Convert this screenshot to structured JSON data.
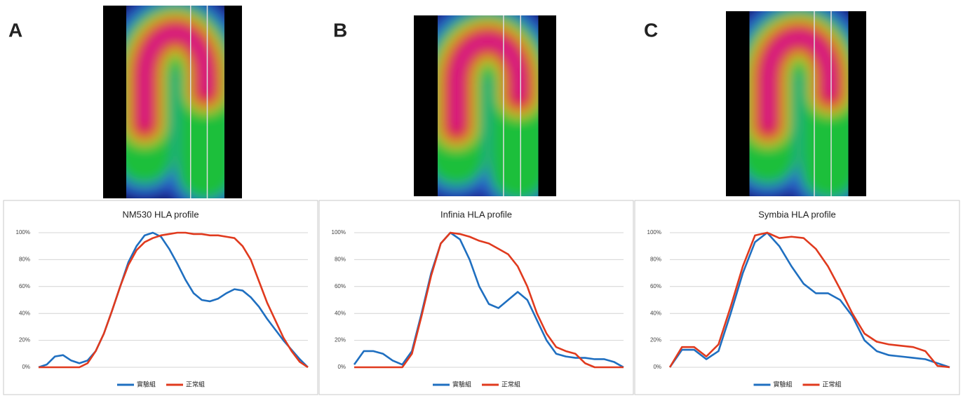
{
  "panel_labels": [
    "A",
    "B",
    "C"
  ],
  "chart_data": [
    {
      "type": "line",
      "title": "NM530 HLA profile",
      "categories": [
        null,
        null,
        null,
        null,
        null,
        null,
        null,
        null,
        null,
        null,
        null,
        null,
        null,
        null,
        null,
        null,
        null,
        null,
        null,
        null,
        null,
        null,
        null,
        null,
        null,
        null,
        null,
        null,
        null,
        null,
        null,
        null,
        null,
        null
      ],
      "series": [
        {
          "name": "實驗組",
          "color": "#1f6fc0",
          "values": [
            0,
            2,
            8,
            9,
            5,
            3,
            5,
            12,
            25,
            42,
            60,
            78,
            90,
            98,
            100,
            97,
            88,
            77,
            65,
            55,
            50,
            49,
            51,
            55,
            58,
            57,
            52,
            45,
            36,
            28,
            20,
            13,
            6,
            0
          ]
        },
        {
          "name": "正常組",
          "color": "#e03a1e",
          "values": [
            0,
            0,
            0,
            0,
            0,
            0,
            3,
            12,
            25,
            42,
            60,
            76,
            87,
            93,
            96,
            98,
            99,
            100,
            100,
            99,
            99,
            98,
            98,
            97,
            96,
            90,
            80,
            64,
            48,
            35,
            22,
            12,
            4,
            0
          ]
        }
      ],
      "ylim": [
        0,
        100
      ],
      "yticks": [
        {
          "value": 0,
          "label": "0%"
        },
        {
          "value": 20,
          "label": "20%"
        },
        {
          "value": 40,
          "label": "40%"
        },
        {
          "value": 60,
          "label": "60%"
        },
        {
          "value": 80,
          "label": "80%"
        },
        {
          "value": 100,
          "label": "100%"
        }
      ],
      "grid": true,
      "legend": "bottom"
    },
    {
      "type": "line",
      "title": "Infinia HLA profile",
      "categories": [
        null,
        null,
        null,
        null,
        null,
        null,
        null,
        null,
        null,
        null,
        null,
        null,
        null,
        null,
        null,
        null,
        null,
        null,
        null,
        null,
        null,
        null,
        null,
        null,
        null,
        null,
        null,
        null,
        null
      ],
      "series": [
        {
          "name": "實驗組",
          "color": "#1f6fc0",
          "values": [
            2,
            12,
            12,
            10,
            5,
            2,
            12,
            40,
            70,
            92,
            100,
            95,
            80,
            60,
            47,
            44,
            50,
            56,
            50,
            35,
            20,
            10,
            8,
            7,
            7,
            6,
            6,
            4,
            0
          ]
        },
        {
          "name": "正常組",
          "color": "#e03a1e",
          "values": [
            0,
            0,
            0,
            0,
            0,
            0,
            10,
            38,
            68,
            92,
            100,
            99,
            97,
            94,
            92,
            88,
            84,
            75,
            60,
            40,
            25,
            15,
            12,
            10,
            3,
            0,
            0,
            0,
            0
          ]
        }
      ],
      "ylim": [
        0,
        100
      ],
      "yticks": [
        {
          "value": 0,
          "label": "0%"
        },
        {
          "value": 20,
          "label": "20%"
        },
        {
          "value": 40,
          "label": "40%"
        },
        {
          "value": 60,
          "label": "60%"
        },
        {
          "value": 80,
          "label": "80%"
        },
        {
          "value": 100,
          "label": "100%"
        }
      ],
      "grid": true,
      "legend": "bottom"
    },
    {
      "type": "line",
      "title": "Symbia HLA profile",
      "categories": [
        null,
        null,
        null,
        null,
        null,
        null,
        null,
        null,
        null,
        null,
        null,
        null,
        null,
        null,
        null,
        null,
        null,
        null,
        null,
        null,
        null,
        null,
        null,
        null
      ],
      "series": [
        {
          "name": "實驗組",
          "color": "#1f6fc0",
          "values": [
            0,
            13,
            13,
            6,
            12,
            40,
            70,
            93,
            100,
            90,
            75,
            62,
            55,
            55,
            50,
            38,
            20,
            12,
            9,
            8,
            7,
            6,
            3,
            0
          ]
        },
        {
          "name": "正常組",
          "color": "#e03a1e",
          "values": [
            0,
            15,
            15,
            8,
            17,
            45,
            75,
            98,
            100,
            96,
            97,
            96,
            88,
            75,
            58,
            40,
            25,
            19,
            17,
            16,
            15,
            12,
            1,
            0
          ]
        }
      ],
      "ylim": [
        0,
        100
      ],
      "yticks": [
        {
          "value": 0,
          "label": "0%"
        },
        {
          "value": 20,
          "label": "20%"
        },
        {
          "value": 40,
          "label": "40%"
        },
        {
          "value": 60,
          "label": "60%"
        },
        {
          "value": 80,
          "label": "80%"
        },
        {
          "value": 100,
          "label": "100%"
        }
      ],
      "grid": true,
      "legend": "bottom"
    }
  ]
}
